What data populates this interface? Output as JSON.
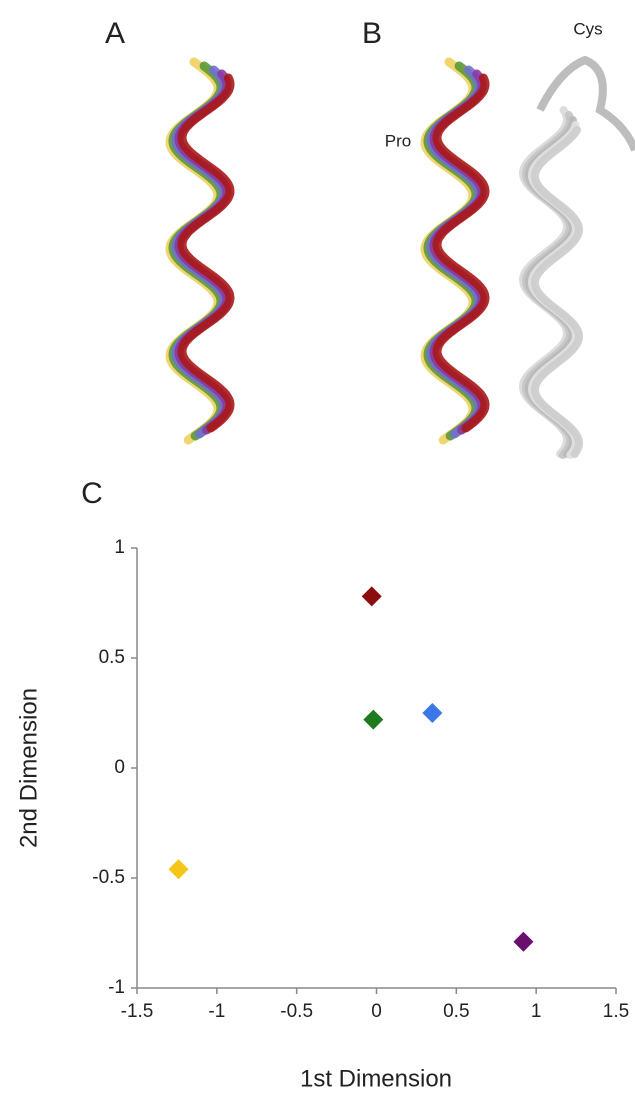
{
  "figure": {
    "panel_labels": [
      "A",
      "B",
      "C"
    ],
    "annotations": [
      "Cys",
      "Pro"
    ]
  },
  "chart_data": {
    "type": "scatter",
    "x": [
      -0.03,
      -0.02,
      0.35,
      -1.24,
      0.92
    ],
    "values": [
      0.78,
      0.22,
      0.25,
      -0.46,
      -0.79
    ],
    "colors": [
      "#8b0d0d",
      "#1e7a1e",
      "#3b78e7",
      "#f5c518",
      "#6a0f6e"
    ],
    "xlim": [
      -1.5,
      1.5
    ],
    "ylim": [
      -1,
      1
    ],
    "xticks": [
      -1.5,
      -1,
      -0.5,
      0,
      0.5,
      1,
      1.5
    ],
    "yticks": [
      -1,
      -0.5,
      0,
      0.5,
      1
    ],
    "xlabel": "1st Dimension",
    "ylabel": "2nd Dimension"
  }
}
